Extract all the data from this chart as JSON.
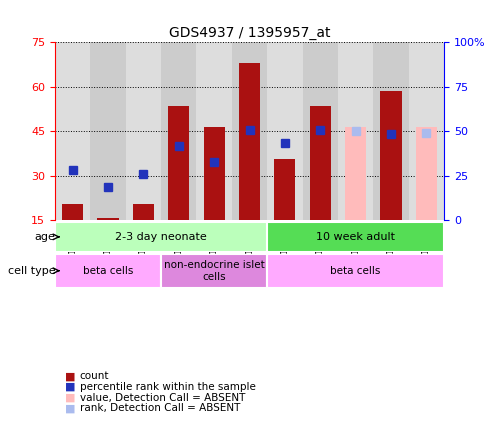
{
  "title": "GDS4937 / 1395957_at",
  "samples": [
    "GSM1146031",
    "GSM1146032",
    "GSM1146033",
    "GSM1146034",
    "GSM1146035",
    "GSM1146036",
    "GSM1146026",
    "GSM1146027",
    "GSM1146028",
    "GSM1146029",
    "GSM1146030"
  ],
  "count_values": [
    20.5,
    15.5,
    20.5,
    53.5,
    46.5,
    68.0,
    35.5,
    53.5,
    null,
    58.5,
    null
  ],
  "rank_values": [
    32.0,
    26.0,
    30.5,
    40.0,
    34.5,
    45.5,
    41.0,
    45.5,
    null,
    44.0,
    null
  ],
  "absent_count": [
    null,
    null,
    null,
    null,
    null,
    null,
    null,
    null,
    46.5,
    null,
    46.5
  ],
  "absent_rank": [
    null,
    null,
    null,
    null,
    null,
    null,
    null,
    null,
    45.0,
    null,
    44.5
  ],
  "bar_color": "#aa1111",
  "rank_color": "#2233bb",
  "absent_bar_color": "#ffbbbb",
  "absent_rank_color": "#aabbee",
  "ylim_left": [
    15,
    75
  ],
  "ylim_right": [
    0,
    100
  ],
  "yticks_left": [
    15,
    30,
    45,
    60,
    75
  ],
  "yticks_right": [
    0,
    25,
    50,
    75,
    100
  ],
  "ytick_labels_right": [
    "0",
    "25",
    "50",
    "75",
    "100%"
  ],
  "age_groups": [
    {
      "label": "2-3 day neonate",
      "start": 0,
      "end": 6,
      "color": "#bbffbb"
    },
    {
      "label": "10 week adult",
      "start": 6,
      "end": 11,
      "color": "#55dd55"
    }
  ],
  "cell_groups": [
    {
      "label": "beta cells",
      "start": 0,
      "end": 3,
      "color": "#ffaaff"
    },
    {
      "label": "non-endocrine islet\ncells",
      "start": 3,
      "end": 6,
      "color": "#dd88dd"
    },
    {
      "label": "beta cells",
      "start": 6,
      "end": 11,
      "color": "#ffaaff"
    }
  ],
  "legend_items": [
    {
      "label": "count",
      "color": "#aa1111"
    },
    {
      "label": "percentile rank within the sample",
      "color": "#2233bb"
    },
    {
      "label": "value, Detection Call = ABSENT",
      "color": "#ffbbbb"
    },
    {
      "label": "rank, Detection Call = ABSENT",
      "color": "#aabbee"
    }
  ],
  "bar_width": 0.6,
  "rank_marker_size": 6,
  "col_bg_colors": [
    "#dddddd",
    "#cccccc"
  ]
}
